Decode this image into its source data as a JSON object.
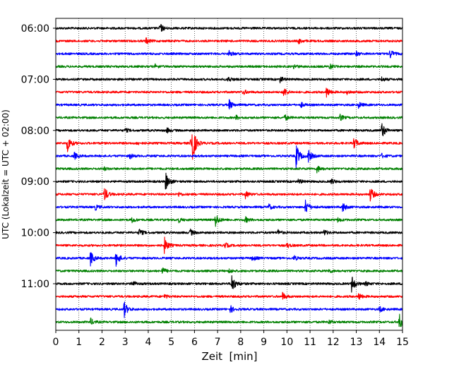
{
  "chart_data": {
    "type": "line",
    "title": "",
    "xlabel": "Zeit  [min]",
    "ylabel": "UTC (Lokalzeit = UTC + 02:00)",
    "xlim": [
      0,
      15
    ],
    "x_ticks": [
      "0",
      "1",
      "2",
      "3",
      "4",
      "5",
      "6",
      "7",
      "8",
      "9",
      "10",
      "11",
      "12",
      "13",
      "14",
      "15"
    ],
    "y_ticks": [
      "06:00",
      "07:00",
      "08:00",
      "09:00",
      "10:00",
      "11:00"
    ],
    "grid": "vertical dotted at each minute",
    "trace_colors": [
      "#000000",
      "#ff0000",
      "#0000ff",
      "#008000"
    ],
    "trace_interval_minutes": 15,
    "series": [
      {
        "start": "06:00",
        "color": "#000000",
        "events": [
          [
            4.5,
            0.5
          ]
        ]
      },
      {
        "start": "06:15",
        "color": "#ff0000",
        "events": [
          [
            3.9,
            0.3
          ],
          [
            10.5,
            0.25
          ]
        ]
      },
      {
        "start": "06:30",
        "color": "#0000ff",
        "events": [
          [
            7.5,
            0.3
          ],
          [
            13.0,
            0.2
          ],
          [
            14.45,
            0.5
          ]
        ]
      },
      {
        "start": "06:45",
        "color": "#008000",
        "events": [
          [
            4.3,
            0.2
          ],
          [
            10.3,
            0.2
          ],
          [
            11.85,
            0.3
          ]
        ]
      },
      {
        "start": "07:00",
        "color": "#000000",
        "events": [
          [
            7.45,
            0.3
          ],
          [
            9.7,
            0.3
          ],
          [
            14.1,
            0.2
          ]
        ]
      },
      {
        "start": "07:15",
        "color": "#ff0000",
        "events": [
          [
            8.1,
            0.25
          ],
          [
            9.85,
            0.5
          ],
          [
            11.7,
            0.55
          ],
          [
            12.6,
            0.2
          ]
        ]
      },
      {
        "start": "07:30",
        "color": "#0000ff",
        "events": [
          [
            7.5,
            0.5
          ],
          [
            10.6,
            0.25
          ],
          [
            13.1,
            0.3
          ]
        ]
      },
      {
        "start": "07:45",
        "color": "#008000",
        "events": [
          [
            7.8,
            0.2
          ],
          [
            9.9,
            0.3
          ],
          [
            12.3,
            0.3
          ]
        ]
      },
      {
        "start": "08:00",
        "color": "#000000",
        "events": [
          [
            3.0,
            0.2
          ],
          [
            4.8,
            0.25
          ],
          [
            14.1,
            0.85
          ]
        ]
      },
      {
        "start": "08:15",
        "color": "#ff0000",
        "events": [
          [
            0.5,
            0.9
          ],
          [
            5.9,
            1.0
          ],
          [
            5.84,
            1.8
          ],
          [
            12.9,
            0.6
          ],
          [
            3.5,
            0.15
          ]
        ]
      },
      {
        "start": "08:30",
        "color": "#0000ff",
        "events": [
          [
            0.8,
            0.35
          ],
          [
            3.2,
            0.25
          ],
          [
            10.4,
            1.3
          ],
          [
            10.9,
            0.8
          ],
          [
            14.1,
            0.2
          ]
        ]
      },
      {
        "start": "08:45",
        "color": "#008000",
        "events": [
          [
            11.3,
            0.4
          ],
          [
            2.1,
            0.15
          ]
        ]
      },
      {
        "start": "09:00",
        "color": "#000000",
        "events": [
          [
            4.75,
            1.0
          ],
          [
            10.5,
            0.25
          ],
          [
            11.9,
            0.3
          ]
        ]
      },
      {
        "start": "09:15",
        "color": "#ff0000",
        "events": [
          [
            2.1,
            0.75
          ],
          [
            8.2,
            0.4
          ],
          [
            13.6,
            0.8
          ],
          [
            5.3,
            0.2
          ]
        ]
      },
      {
        "start": "09:30",
        "color": "#0000ff",
        "events": [
          [
            1.7,
            0.3
          ],
          [
            10.8,
            0.85
          ],
          [
            12.4,
            0.5
          ],
          [
            9.2,
            0.3
          ]
        ]
      },
      {
        "start": "09:45",
        "color": "#008000",
        "events": [
          [
            6.9,
            0.75
          ],
          [
            3.3,
            0.25
          ],
          [
            8.2,
            0.3
          ],
          [
            5.3,
            0.25
          ],
          [
            12.2,
            0.2
          ]
        ]
      },
      {
        "start": "10:00",
        "color": "#000000",
        "events": [
          [
            3.6,
            0.4
          ],
          [
            5.8,
            0.35
          ],
          [
            9.6,
            0.3
          ],
          [
            11.6,
            0.3
          ]
        ]
      },
      {
        "start": "10:15",
        "color": "#ff0000",
        "events": [
          [
            4.7,
            0.85
          ],
          [
            7.3,
            0.3
          ],
          [
            10.0,
            0.25
          ]
        ]
      },
      {
        "start": "10:30",
        "color": "#0000ff",
        "events": [
          [
            1.5,
            0.75
          ],
          [
            2.6,
            0.85
          ],
          [
            8.5,
            0.3
          ],
          [
            10.3,
            0.25
          ]
        ]
      },
      {
        "start": "10:45",
        "color": "#008000",
        "events": [
          [
            4.6,
            0.35
          ],
          [
            7.5,
            0.2
          ],
          [
            11.8,
            0.2
          ]
        ]
      },
      {
        "start": "11:00",
        "color": "#000000",
        "events": [
          [
            7.6,
            1.05
          ],
          [
            12.8,
            0.9
          ],
          [
            3.3,
            0.35
          ],
          [
            13.4,
            0.2
          ]
        ]
      },
      {
        "start": "11:15",
        "color": "#ff0000",
        "events": [
          [
            9.8,
            0.4
          ],
          [
            13.1,
            0.35
          ],
          [
            4.7,
            0.2
          ]
        ]
      },
      {
        "start": "11:30",
        "color": "#0000ff",
        "events": [
          [
            2.95,
            0.85
          ],
          [
            7.55,
            0.35
          ],
          [
            14.0,
            0.3
          ]
        ]
      },
      {
        "start": "11:45",
        "color": "#008000",
        "events": [
          [
            14.85,
            0.85
          ],
          [
            1.5,
            0.35
          ],
          [
            11.8,
            0.2
          ]
        ]
      }
    ]
  }
}
